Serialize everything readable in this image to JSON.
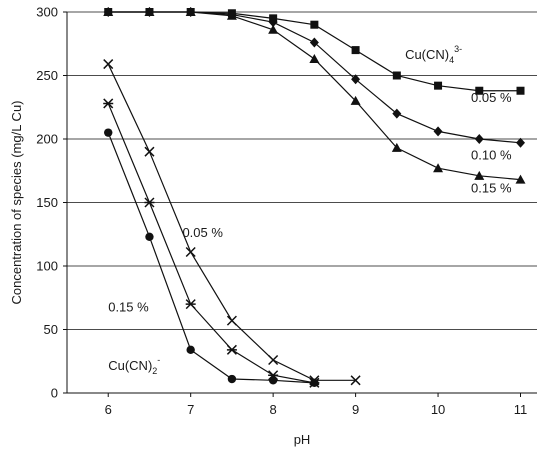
{
  "chart_data": {
    "type": "line",
    "title": "",
    "xlabel": "pH",
    "ylabel": "Concentration of species (mg/L Cu)",
    "xlim": [
      5.5,
      11.2
    ],
    "ylim": [
      0,
      300
    ],
    "xticks": [
      6,
      7,
      8,
      9,
      10,
      11
    ],
    "yticks": [
      0,
      50,
      100,
      150,
      200,
      250,
      300
    ],
    "grid": "horizontal",
    "legend": "none",
    "series": [
      {
        "marker": "square",
        "x": [
          6,
          6.5,
          7,
          7.5,
          8,
          8.5,
          9,
          9.5,
          10,
          10.5,
          11
        ],
        "y": [
          300,
          300,
          300,
          299,
          295,
          290,
          270,
          250,
          242,
          238,
          238
        ]
      },
      {
        "marker": "diamond",
        "x": [
          6,
          6.5,
          7,
          7.5,
          8,
          8.5,
          9,
          9.5,
          10,
          10.5,
          11
        ],
        "y": [
          300,
          300,
          300,
          298,
          292,
          276,
          247,
          220,
          206,
          200,
          197
        ]
      },
      {
        "marker": "triangle",
        "x": [
          6,
          6.5,
          7,
          7.5,
          8,
          8.5,
          9,
          9.5,
          10,
          10.5,
          11
        ],
        "y": [
          300,
          300,
          300,
          297,
          286,
          263,
          230,
          193,
          177,
          171,
          168
        ]
      },
      {
        "marker": "x",
        "x": [
          6,
          6.5,
          7,
          7.5,
          8,
          8.5,
          9
        ],
        "y": [
          259,
          190,
          111,
          57,
          26,
          10,
          10
        ]
      },
      {
        "marker": "star",
        "x": [
          6,
          6.5,
          7,
          7.5,
          8,
          8.5
        ],
        "y": [
          228,
          150,
          70,
          34,
          14,
          8
        ]
      },
      {
        "marker": "circle",
        "x": [
          6,
          6.5,
          7,
          7.5,
          8,
          8.5
        ],
        "y": [
          205,
          123,
          34,
          11,
          10,
          8
        ]
      }
    ],
    "annotations": [
      {
        "text": "Cu(CN)",
        "sub": "4",
        "sup": "3-",
        "x": 9.6,
        "y": 263
      },
      {
        "text": "0.05 %",
        "x": 10.4,
        "y": 229
      },
      {
        "text": "0.10 %",
        "x": 10.4,
        "y": 184
      },
      {
        "text": "0.15 %",
        "x": 10.4,
        "y": 158
      },
      {
        "text": "0.05 %",
        "x": 6.9,
        "y": 123
      },
      {
        "text": "0.15 %",
        "x": 6.0,
        "y": 64
      },
      {
        "text": "Cu(CN)",
        "sub": "2",
        "sup": "-",
        "x": 6.0,
        "y": 18
      }
    ]
  }
}
